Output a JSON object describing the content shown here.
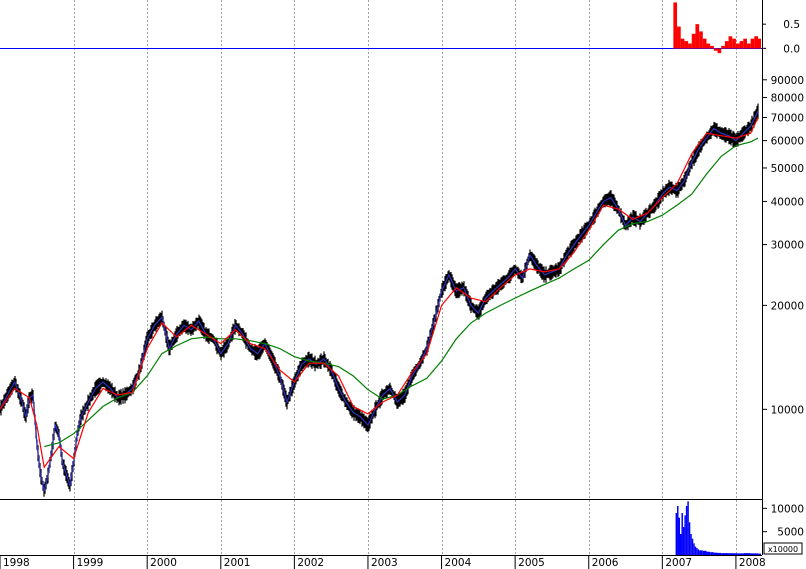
{
  "chart_data": [
    {
      "type": "bar",
      "panel": "indicator",
      "y_ticks": [
        "0.5",
        "0.0"
      ],
      "ylim": [
        -0.2,
        1.0
      ],
      "baseline": 0.0,
      "colors": {
        "bars": "#ff0000",
        "baseline": "#0000ff"
      },
      "x": [
        2007.15,
        2007.2,
        2007.25,
        2007.3,
        2007.35,
        2007.4,
        2007.45,
        2007.5,
        2007.55,
        2007.6,
        2007.65,
        2007.7,
        2007.75,
        2007.8,
        2007.85,
        2007.9,
        2007.95,
        2008.0,
        2008.05,
        2008.1,
        2008.15,
        2008.2,
        2008.25,
        2008.3
      ],
      "values": [
        0.95,
        0.45,
        0.2,
        0.15,
        0.1,
        0.3,
        0.5,
        0.35,
        0.2,
        0.1,
        0.05,
        -0.05,
        -0.1,
        0.05,
        0.15,
        0.25,
        0.2,
        0.1,
        0.15,
        0.2,
        0.1,
        0.2,
        0.25,
        0.2
      ]
    },
    {
      "type": "line",
      "panel": "price",
      "scale": "log",
      "ylim": [
        5500,
        100000
      ],
      "y_ticks": [
        "90000",
        "80000",
        "70000",
        "60000",
        "50000",
        "40000",
        "30000",
        "20000",
        "10000"
      ],
      "colors": {
        "price": "#000050",
        "short_ma": "#ff0000",
        "long_ma": "#008000"
      },
      "series": [
        {
          "x": [
            1998.0,
            1998.1,
            1998.2,
            1998.3,
            1998.35,
            1998.4,
            1998.45,
            1998.5,
            1998.55,
            1998.6,
            1998.65,
            1998.7,
            1998.75,
            1998.8,
            1998.85,
            1998.9,
            1998.95,
            1999.0,
            1999.05,
            1999.1,
            1999.2,
            1999.3,
            1999.4,
            1999.5,
            1999.6,
            1999.7,
            1999.8,
            1999.9,
            2000.0,
            2000.1,
            2000.2,
            2000.3,
            2000.4,
            2000.5,
            2000.6,
            2000.7,
            2000.8,
            2000.9,
            2001.0,
            2001.1,
            2001.2,
            2001.3,
            2001.4,
            2001.5,
            2001.6,
            2001.7,
            2001.8,
            2001.9,
            2002.0,
            2002.1,
            2002.2,
            2002.3,
            2002.4,
            2002.5,
            2002.6,
            2002.7,
            2002.8,
            2002.9,
            2003.0,
            2003.1,
            2003.2,
            2003.3,
            2003.4,
            2003.5,
            2003.6,
            2003.7,
            2003.8,
            2003.9,
            2004.0,
            2004.1,
            2004.2,
            2004.3,
            2004.4,
            2004.5,
            2004.6,
            2004.7,
            2004.8,
            2004.9,
            2005.0,
            2005.1,
            2005.2,
            2005.3,
            2005.4,
            2005.5,
            2005.6,
            2005.7,
            2005.8,
            2005.9,
            2006.0,
            2006.1,
            2006.2,
            2006.3,
            2006.4,
            2006.5,
            2006.6,
            2006.7,
            2006.8,
            2006.9,
            2007.0,
            2007.1,
            2007.2,
            2007.3,
            2007.4,
            2007.5,
            2007.6,
            2007.7,
            2007.8,
            2007.9,
            2008.0,
            2008.1,
            2008.2,
            2008.3
          ],
          "values": [
            10000,
            11000,
            12000,
            10500,
            9500,
            10800,
            11000,
            8000,
            6500,
            5800,
            6400,
            7500,
            9000,
            8500,
            7000,
            6500,
            6000,
            7000,
            8500,
            9500,
            10500,
            11500,
            12000,
            11500,
            10800,
            11000,
            11500,
            13000,
            16000,
            17500,
            18500,
            15000,
            16500,
            17500,
            17000,
            18000,
            16500,
            16000,
            14500,
            15500,
            17500,
            16500,
            15000,
            14500,
            15500,
            14000,
            12500,
            10500,
            12000,
            13500,
            14000,
            13500,
            14000,
            13000,
            11500,
            10500,
            9800,
            9500,
            9000,
            10000,
            11000,
            11500,
            10500,
            11000,
            12500,
            13500,
            15000,
            18000,
            22000,
            24500,
            22000,
            22500,
            20000,
            19000,
            21000,
            22000,
            23000,
            24000,
            25500,
            24000,
            28000,
            26000,
            24500,
            25000,
            25500,
            28000,
            30000,
            32000,
            34000,
            37000,
            40000,
            41000,
            38000,
            34000,
            36000,
            35000,
            37000,
            39000,
            42000,
            44000,
            43000,
            46000,
            52000,
            57000,
            61000,
            65000,
            63000,
            62000,
            60000,
            63000,
            66000,
            73000
          ]
        },
        {
          "x": [
            1998.0,
            1998.2,
            1998.4,
            1998.5,
            1998.6,
            1998.8,
            1999.0,
            1999.2,
            1999.4,
            1999.6,
            1999.8,
            2000.0,
            2000.2,
            2000.4,
            2000.6,
            2000.8,
            2001.0,
            2001.2,
            2001.4,
            2001.6,
            2001.8,
            2002.0,
            2002.2,
            2002.4,
            2002.6,
            2002.8,
            2003.0,
            2003.2,
            2003.4,
            2003.6,
            2003.8,
            2004.0,
            2004.2,
            2004.4,
            2004.6,
            2004.8,
            2005.0,
            2005.2,
            2005.4,
            2005.6,
            2005.8,
            2006.0,
            2006.2,
            2006.4,
            2006.6,
            2006.8,
            2007.0,
            2007.2,
            2007.4,
            2007.6,
            2007.8,
            2008.0,
            2008.2,
            2008.3
          ],
          "values": [
            10000,
            11500,
            10800,
            9000,
            6800,
            7800,
            7200,
            9800,
            11500,
            11000,
            11200,
            15000,
            17800,
            16200,
            17500,
            16500,
            15500,
            17000,
            15500,
            15000,
            13000,
            12000,
            13600,
            13600,
            12500,
            10200,
            9700,
            10500,
            11000,
            12800,
            14500,
            20000,
            22500,
            21000,
            20500,
            22500,
            24500,
            25500,
            25000,
            25500,
            28500,
            33000,
            39000,
            38000,
            35500,
            37000,
            41000,
            45000,
            55000,
            63000,
            62000,
            61000,
            63000,
            70000
          ]
        },
        {
          "x": [
            1998.6,
            1998.8,
            1999.0,
            1999.2,
            1999.4,
            1999.6,
            1999.8,
            2000.0,
            2000.2,
            2000.4,
            2000.6,
            2000.8,
            2001.0,
            2001.2,
            2001.4,
            2001.6,
            2001.8,
            2002.0,
            2002.2,
            2002.4,
            2002.6,
            2002.8,
            2003.0,
            2003.2,
            2003.4,
            2003.6,
            2003.8,
            2004.0,
            2004.2,
            2004.4,
            2004.6,
            2004.8,
            2005.0,
            2005.2,
            2005.4,
            2005.6,
            2005.8,
            2006.0,
            2006.2,
            2006.4,
            2006.6,
            2006.8,
            2007.0,
            2007.2,
            2007.4,
            2007.6,
            2007.8,
            2008.0,
            2008.2,
            2008.3
          ],
          "values": [
            7800,
            8000,
            8500,
            9300,
            10200,
            10800,
            11200,
            12500,
            14500,
            15300,
            16000,
            16200,
            16000,
            16000,
            15800,
            15500,
            15000,
            14200,
            13800,
            13600,
            13300,
            12500,
            11400,
            10700,
            11000,
            11700,
            12300,
            13800,
            16000,
            17800,
            19000,
            20000,
            21000,
            22000,
            23000,
            24000,
            25500,
            27000,
            30000,
            33000,
            34500,
            35000,
            36500,
            39000,
            42000,
            48000,
            54000,
            58000,
            59500,
            61000
          ]
        }
      ]
    },
    {
      "type": "bar",
      "panel": "volume",
      "y_ticks": [
        "10000",
        "5000"
      ],
      "unit_label": "x10000",
      "ylim": [
        0,
        12000
      ],
      "colors": {
        "bars": "#0000ff"
      },
      "x": [
        2007.18,
        2007.2,
        2007.22,
        2007.24,
        2007.26,
        2007.28,
        2007.3,
        2007.32,
        2007.34,
        2007.36,
        2007.38,
        2007.4,
        2007.42,
        2007.44,
        2007.46,
        2007.48,
        2007.5,
        2007.55,
        2007.6,
        2007.65,
        2007.7,
        2007.75,
        2007.8,
        2007.9,
        2008.0,
        2008.1,
        2008.2,
        2008.3
      ],
      "values": [
        9000,
        10500,
        8000,
        4500,
        9000,
        6000,
        8500,
        10500,
        11500,
        7000,
        4500,
        3500,
        2500,
        1800,
        1500,
        1200,
        1000,
        900,
        700,
        600,
        500,
        450,
        400,
        380,
        350,
        400,
        350,
        300
      ]
    }
  ],
  "x_axis": {
    "range": [
      1998.0,
      2008.3
    ],
    "labels": [
      {
        "x": 1998,
        "text": "1998"
      },
      {
        "x": 1999,
        "text": "1999"
      },
      {
        "x": 2000,
        "text": "2000"
      },
      {
        "x": 2001,
        "text": "2001"
      },
      {
        "x": 2002,
        "text": "2002"
      },
      {
        "x": 2003,
        "text": "2003"
      },
      {
        "x": 2004,
        "text": "2004"
      },
      {
        "x": 2005,
        "text": "2005"
      },
      {
        "x": 2006,
        "text": "2006"
      },
      {
        "x": 2007,
        "text": "2007"
      },
      {
        "x": 2008,
        "text": "2008"
      }
    ],
    "grid": true
  }
}
